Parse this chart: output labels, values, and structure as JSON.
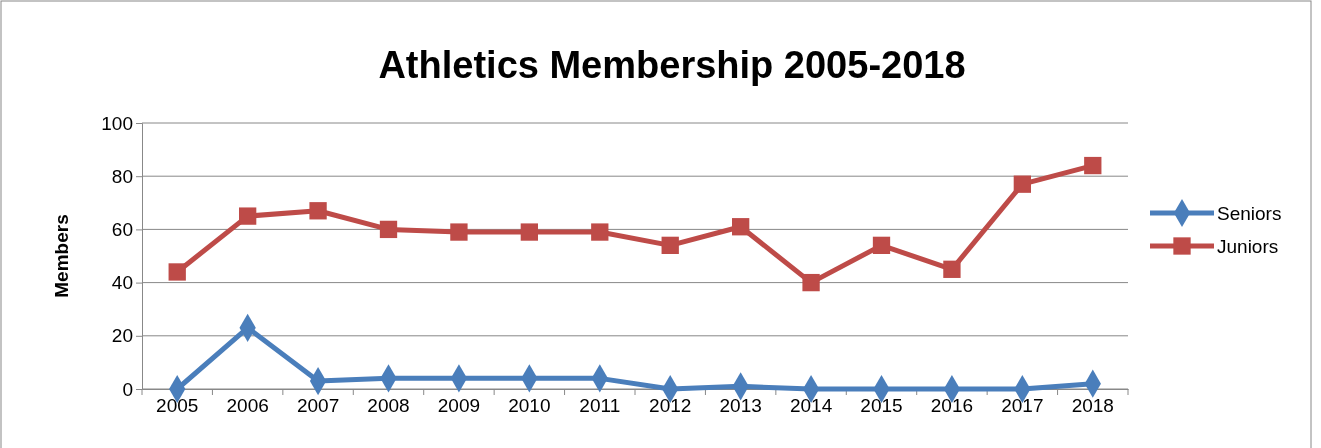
{
  "chart_data": {
    "type": "line",
    "title": "Athletics Membership 2005-2018",
    "ylabel": "Members",
    "categories": [
      "2005",
      "2006",
      "2007",
      "2008",
      "2009",
      "2010",
      "2011",
      "2012",
      "2013",
      "2014",
      "2015",
      "2016",
      "2017",
      "2018"
    ],
    "series": [
      {
        "name": "Seniors",
        "color": "#4a7ebb",
        "marker": "diamond",
        "values": [
          0,
          23,
          3,
          4,
          4,
          4,
          4,
          0,
          1,
          0,
          0,
          0,
          0,
          2
        ]
      },
      {
        "name": "Juniors",
        "color": "#be4b48",
        "marker": "square",
        "values": [
          44,
          65,
          67,
          60,
          59,
          59,
          59,
          54,
          61,
          40,
          54,
          45,
          77,
          84
        ]
      }
    ],
    "ylim": [
      0,
      100
    ],
    "yticks": [
      0,
      20,
      40,
      60,
      80,
      100
    ],
    "grid": "y",
    "legend": "right"
  }
}
